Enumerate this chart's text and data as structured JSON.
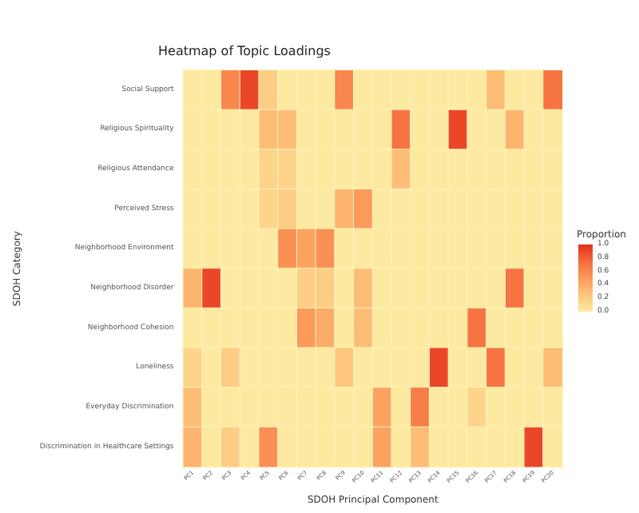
{
  "chart_data": {
    "type": "heatmap",
    "title": "Heatmap of Topic Loadings",
    "xlabel": "SDOH Principal Component",
    "ylabel": "SDOH Category",
    "clabel": "Proportion",
    "categories": [
      "PC1",
      "PC2",
      "PC3",
      "PC4",
      "PC5",
      "PC6",
      "PC7",
      "PC8",
      "PC9",
      "PC10",
      "PC11",
      "PC12",
      "PC13",
      "PC14",
      "PC15",
      "PC16",
      "PC17",
      "PC18",
      "PC19",
      "PC20"
    ],
    "y_categories": [
      "Social Support",
      "Religious Spirituality",
      "Religious Attendance",
      "Perceived Stress",
      "Neighborhood Environment",
      "Neighborhood Disorder",
      "Neighborhood Cohesion",
      "Loneliness",
      "Everyday Discrimination",
      "Discrimination in Healthcare Settings"
    ],
    "cells": [
      [
        0,
        0,
        0.6,
        0.9,
        0.2,
        0,
        0,
        0,
        0.6,
        0,
        0,
        0,
        0,
        0,
        0,
        0,
        0.3,
        0,
        0,
        0.7
      ],
      [
        0,
        0,
        0,
        0,
        0.3,
        0.3,
        0,
        0,
        0,
        0,
        0,
        0.7,
        0,
        0,
        0.9,
        0,
        0,
        0.35,
        0,
        0
      ],
      [
        0,
        0,
        0,
        0,
        0.15,
        0.15,
        0,
        0,
        0,
        0,
        0,
        0.3,
        0,
        0,
        0,
        0,
        0,
        0,
        0,
        0
      ],
      [
        0,
        0,
        0,
        0,
        0.15,
        0.2,
        0,
        0,
        0.35,
        0.5,
        0,
        0,
        0,
        0,
        0,
        0,
        0,
        0,
        0,
        0
      ],
      [
        0,
        0,
        0,
        0,
        0,
        0.55,
        0.45,
        0.55,
        0,
        0,
        0,
        0,
        0,
        0,
        0,
        0,
        0,
        0,
        0,
        0
      ],
      [
        0.35,
        0.9,
        0,
        0,
        0,
        0,
        0.2,
        0.2,
        0,
        0.3,
        0,
        0,
        0,
        0,
        0,
        0,
        0,
        0.7,
        0,
        0
      ],
      [
        0,
        0,
        0,
        0,
        0,
        0,
        0.5,
        0.4,
        0,
        0.3,
        0,
        0,
        0,
        0,
        0,
        0.7,
        0,
        0,
        0,
        0
      ],
      [
        0.15,
        0,
        0.2,
        0,
        0,
        0,
        0,
        0,
        0.25,
        0,
        0,
        0,
        0,
        0.9,
        0,
        0,
        0.7,
        0,
        0,
        0.3
      ],
      [
        0.3,
        0,
        0,
        0,
        0,
        0,
        0,
        0,
        0,
        0,
        0.45,
        0,
        0.65,
        0,
        0,
        0.15,
        0,
        0,
        0,
        0
      ],
      [
        0.35,
        0,
        0.2,
        0,
        0.55,
        0,
        0,
        0,
        0,
        0,
        0.45,
        0,
        0.3,
        0,
        0,
        0,
        0,
        0,
        0.9,
        0
      ]
    ],
    "clim": [
      0,
      1
    ],
    "cticks": [
      {
        "value": 0,
        "label": "0.0"
      },
      {
        "value": 0.2,
        "label": "0.2"
      },
      {
        "value": 0.4,
        "label": "0.4"
      },
      {
        "value": 0.6,
        "label": "0.6"
      },
      {
        "value": 0.8,
        "label": "0.8"
      },
      {
        "value": 1,
        "label": "1.0"
      }
    ]
  }
}
